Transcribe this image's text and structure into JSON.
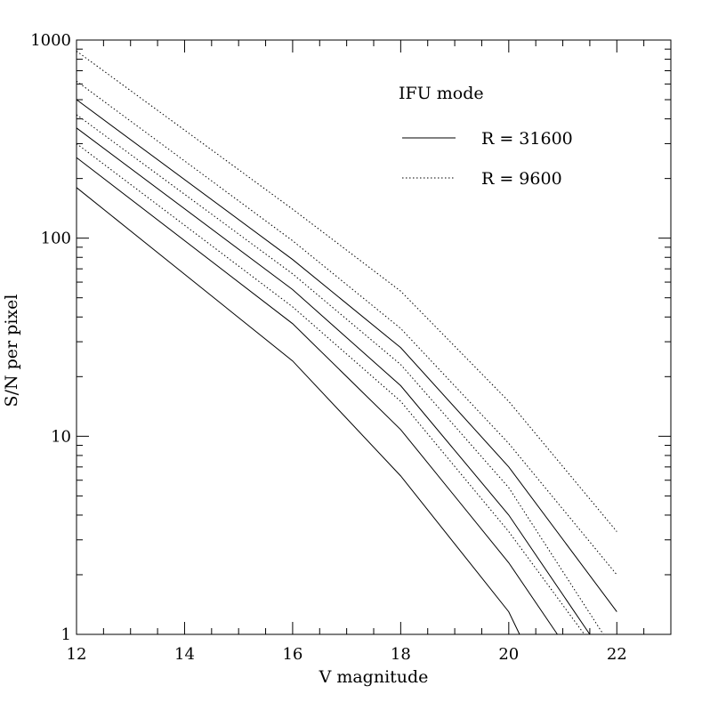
{
  "chart_data": {
    "type": "line",
    "title": "",
    "xlabel": "V magnitude",
    "ylabel": "S/N per pixel",
    "xlim": [
      12,
      23
    ],
    "ylim": [
      1,
      1000
    ],
    "yscale": "log",
    "grid": false,
    "legend_position": "top-right",
    "x_ticks": [
      "12",
      "14",
      "16",
      "18",
      "20",
      "22"
    ],
    "y_ticks": [
      "1",
      "10",
      "100",
      "1000"
    ],
    "legend": {
      "title": "IFU mode",
      "entries": [
        {
          "label": "R = 31600",
          "style": "solid"
        },
        {
          "label": "R = 9600",
          "style": "dotted"
        }
      ]
    },
    "series": [
      {
        "style": "solid",
        "x": [
          12,
          16,
          18,
          20,
          20.2
        ],
        "y": [
          180,
          24,
          6.3,
          1.3,
          1.0
        ]
      },
      {
        "style": "solid",
        "x": [
          12,
          16,
          18,
          20,
          20.9
        ],
        "y": [
          255,
          37,
          10.8,
          2.3,
          1.0
        ]
      },
      {
        "style": "solid",
        "x": [
          12,
          16,
          18,
          20,
          21.5
        ],
        "y": [
          360,
          55,
          18,
          4.0,
          1.0
        ]
      },
      {
        "style": "solid",
        "x": [
          12,
          16,
          18,
          20,
          22
        ],
        "y": [
          500,
          78,
          28,
          7.0,
          1.3
        ]
      },
      {
        "style": "dotted",
        "x": [
          12,
          16,
          18,
          20,
          21.4
        ],
        "y": [
          300,
          45,
          15,
          3.3,
          1.0
        ]
      },
      {
        "style": "dotted",
        "x": [
          12,
          16,
          18,
          20,
          21.75
        ],
        "y": [
          420,
          66,
          23,
          5.5,
          1.0
        ]
      },
      {
        "style": "dotted",
        "x": [
          12,
          16,
          18,
          20,
          22
        ],
        "y": [
          620,
          97,
          35,
          9.2,
          2.0
        ]
      },
      {
        "style": "dotted",
        "x": [
          12,
          16,
          18,
          20,
          22
        ],
        "y": [
          880,
          140,
          54,
          15,
          3.3
        ]
      }
    ]
  }
}
